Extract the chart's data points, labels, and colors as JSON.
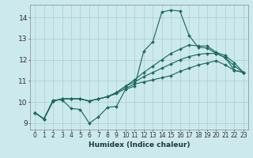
{
  "xlabel": "Humidex (Indice chaleur)",
  "bg_color": "#cce9ee",
  "line_color": "#1e6b60",
  "grid_color": "#aacdd4",
  "xlim": [
    -0.5,
    23.5
  ],
  "ylim": [
    8.7,
    14.6
  ],
  "yticks": [
    9,
    10,
    11,
    12,
    13,
    14
  ],
  "xticks": [
    0,
    1,
    2,
    3,
    4,
    5,
    6,
    7,
    8,
    9,
    10,
    11,
    12,
    13,
    14,
    15,
    16,
    17,
    18,
    19,
    20,
    21,
    22,
    23
  ],
  "lines": [
    {
      "x": [
        0,
        1,
        2,
        3,
        4,
        5,
        6,
        7,
        8,
        9,
        10,
        11,
        12,
        13,
        14,
        15,
        16,
        17,
        18,
        19,
        20,
        21,
        22,
        23
      ],
      "y": [
        9.5,
        9.2,
        10.1,
        10.1,
        9.7,
        9.65,
        9.0,
        9.3,
        9.75,
        9.8,
        10.6,
        10.75,
        12.4,
        12.85,
        14.25,
        14.35,
        14.3,
        13.15,
        12.6,
        12.55,
        12.3,
        12.1,
        11.5,
        11.4
      ]
    },
    {
      "x": [
        0,
        1,
        2,
        3,
        4,
        5,
        6,
        7,
        8,
        9,
        10,
        11,
        12,
        13,
        14,
        15,
        16,
        17,
        18,
        19,
        20,
        21,
        22,
        23
      ],
      "y": [
        9.5,
        9.2,
        10.05,
        10.15,
        10.15,
        10.15,
        10.05,
        10.15,
        10.25,
        10.45,
        10.75,
        11.05,
        11.4,
        11.7,
        12.0,
        12.3,
        12.5,
        12.7,
        12.65,
        12.65,
        12.35,
        12.2,
        11.85,
        11.4
      ]
    },
    {
      "x": [
        0,
        1,
        2,
        3,
        4,
        5,
        6,
        7,
        8,
        9,
        10,
        11,
        12,
        13,
        14,
        15,
        16,
        17,
        18,
        19,
        20,
        21,
        22,
        23
      ],
      "y": [
        9.5,
        9.2,
        10.05,
        10.15,
        10.15,
        10.15,
        10.05,
        10.15,
        10.25,
        10.45,
        10.75,
        10.95,
        11.2,
        11.4,
        11.6,
        11.8,
        12.0,
        12.15,
        12.25,
        12.3,
        12.3,
        12.1,
        11.7,
        11.4
      ]
    },
    {
      "x": [
        0,
        1,
        2,
        3,
        4,
        5,
        6,
        7,
        8,
        9,
        10,
        11,
        12,
        13,
        14,
        15,
        16,
        17,
        18,
        19,
        20,
        21,
        22,
        23
      ],
      "y": [
        9.5,
        9.2,
        10.05,
        10.15,
        10.15,
        10.15,
        10.05,
        10.15,
        10.25,
        10.4,
        10.65,
        10.85,
        10.95,
        11.05,
        11.15,
        11.25,
        11.45,
        11.6,
        11.75,
        11.85,
        11.95,
        11.75,
        11.5,
        11.4
      ]
    }
  ]
}
